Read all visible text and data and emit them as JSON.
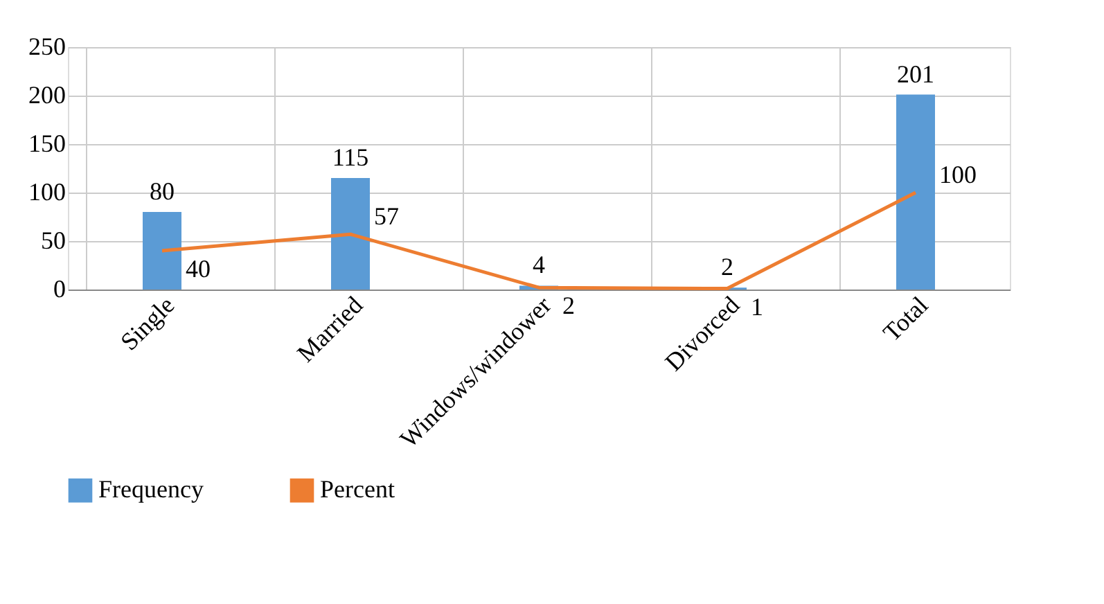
{
  "chart_data": {
    "type": "bar",
    "categories": [
      "Single",
      "Married",
      "Windows/windower",
      "Divorced",
      "Total"
    ],
    "series": [
      {
        "name": "Frequency",
        "color": "#5b9bd5",
        "values": [
          80,
          115,
          4,
          2,
          201
        ]
      },
      {
        "name": "Percent",
        "type": "line",
        "color": "#ed7d31",
        "values": [
          40,
          57,
          2,
          1,
          100
        ]
      }
    ],
    "ylim": [
      0,
      250
    ],
    "yticks": [
      0,
      50,
      100,
      150,
      200,
      250
    ],
    "grid": true,
    "data_labels": true,
    "legend": "bottom",
    "line_style": "solid",
    "marker": "none"
  }
}
